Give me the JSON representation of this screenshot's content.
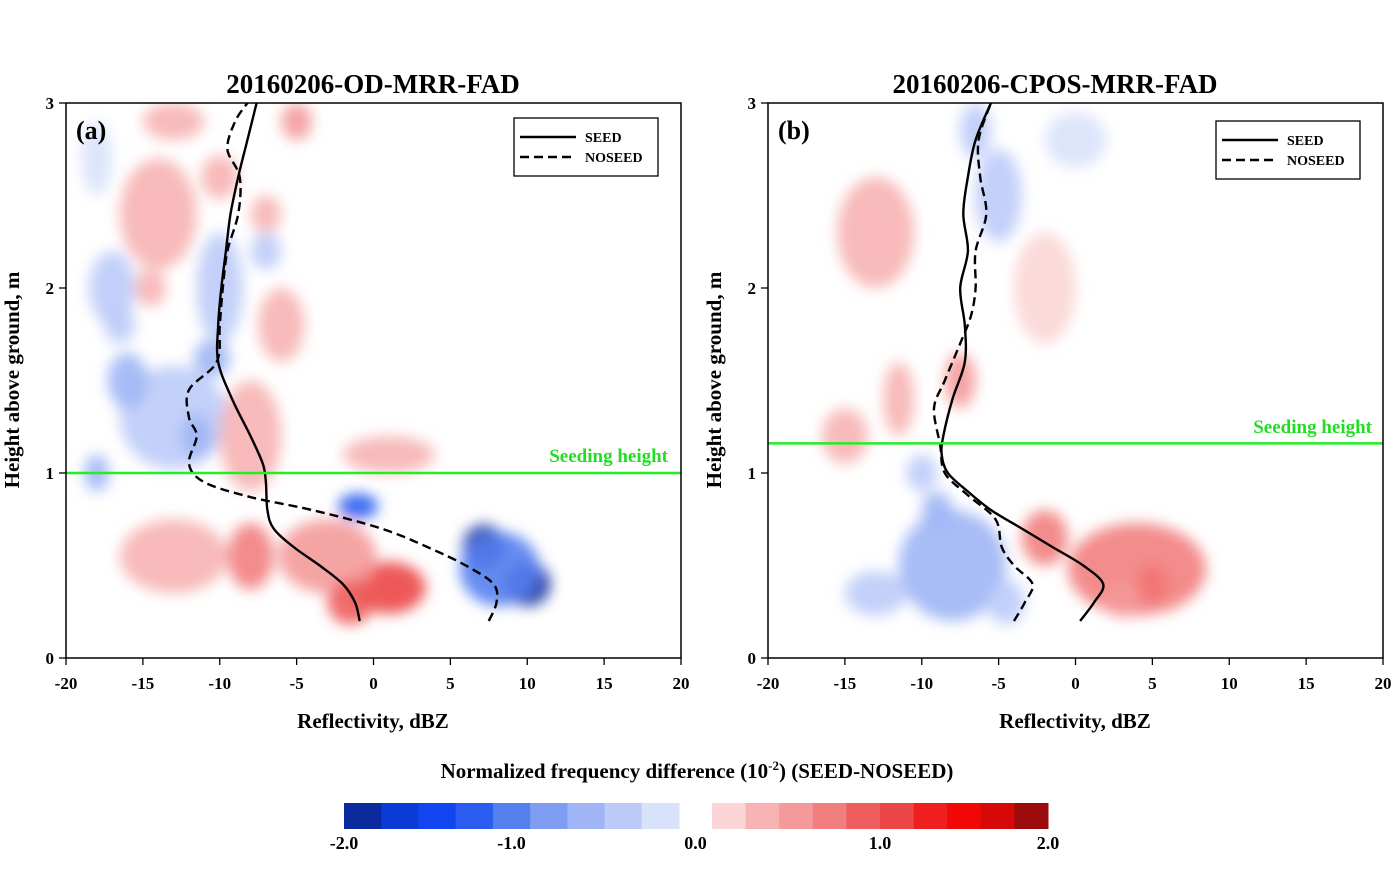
{
  "colors": {
    "seeding_line": "#22ee22",
    "seeding_text": "#22dd22",
    "negative_scale": [
      "#0b2a9e",
      "#0a3bd6",
      "#1045f0",
      "#2a5cf0",
      "#5580f0",
      "#7d9cf2",
      "#9fb5f5",
      "#bccbf8",
      "#d9e2fb"
    ],
    "positive_scale": [
      "#fbd5d5",
      "#f7b3b3",
      "#f49a9a",
      "#f27f7f",
      "#ee5d5d",
      "#ec4646",
      "#f01f1f",
      "#f20707",
      "#d60808",
      "#9c0b0b"
    ]
  },
  "colorbar": {
    "title": "Normalized frequency difference (10",
    "title_exp": "-2",
    "title_suffix": ") (SEED-NOSEED)",
    "tick_labels": [
      "-2.0",
      "-1.0",
      "0.0",
      "1.0",
      "2.0"
    ],
    "tick_values": [
      -2.0,
      -1.0,
      0.0,
      1.0,
      2.0
    ]
  },
  "chart_data": [
    {
      "type": "line",
      "panel_label": "(a)",
      "title": "20160206-OD-MRR-FAD",
      "xlabel": "Reflectivity, dBZ",
      "ylabel": "Height above ground, m",
      "xlim": [
        -20,
        20
      ],
      "ylim": [
        0,
        3
      ],
      "xticks": [
        -20,
        -15,
        -10,
        -5,
        0,
        5,
        10,
        15,
        20
      ],
      "yticks": [
        0,
        1,
        2,
        3
      ],
      "legend": {
        "placement": "top-right",
        "entries": [
          "SEED",
          "NOSEED"
        ]
      },
      "seeding": {
        "label": "Seeding height",
        "height": 1.0
      },
      "series": [
        {
          "name": "SEED",
          "style": "solid",
          "points": [
            [
              -0.9,
              0.2
            ],
            [
              -1.2,
              0.3
            ],
            [
              -2.0,
              0.4
            ],
            [
              -3.5,
              0.5
            ],
            [
              -5.2,
              0.6
            ],
            [
              -6.5,
              0.7
            ],
            [
              -6.9,
              0.8
            ],
            [
              -7.0,
              0.95
            ],
            [
              -7.2,
              1.05
            ],
            [
              -8.0,
              1.2
            ],
            [
              -9.2,
              1.4
            ],
            [
              -10.1,
              1.6
            ],
            [
              -10.1,
              1.8
            ],
            [
              -9.9,
              2.0
            ],
            [
              -9.6,
              2.2
            ],
            [
              -9.3,
              2.4
            ],
            [
              -8.8,
              2.6
            ],
            [
              -8.2,
              2.8
            ],
            [
              -7.6,
              3.0
            ]
          ]
        },
        {
          "name": "NOSEED",
          "style": "dashed",
          "points": [
            [
              7.5,
              0.2
            ],
            [
              8.0,
              0.3
            ],
            [
              7.8,
              0.4
            ],
            [
              6.0,
              0.5
            ],
            [
              3.5,
              0.6
            ],
            [
              0.5,
              0.7
            ],
            [
              -4.0,
              0.8
            ],
            [
              -8.0,
              0.87
            ],
            [
              -11.0,
              0.95
            ],
            [
              -12.0,
              1.05
            ],
            [
              -11.5,
              1.2
            ],
            [
              -12.0,
              1.3
            ],
            [
              -12.0,
              1.45
            ],
            [
              -10.2,
              1.6
            ],
            [
              -10.0,
              1.8
            ],
            [
              -9.8,
              2.0
            ],
            [
              -9.5,
              2.2
            ],
            [
              -8.8,
              2.4
            ],
            [
              -8.7,
              2.6
            ],
            [
              -9.5,
              2.75
            ],
            [
              -9.0,
              2.9
            ],
            [
              -8.2,
              3.0
            ]
          ]
        }
      ],
      "heatmap_blobs": [
        {
          "x": 7.2,
          "y": 0.6,
          "sx": 1.4,
          "sy": 0.12,
          "v": -1.8
        },
        {
          "x": 10.0,
          "y": 0.4,
          "sx": 1.5,
          "sy": 0.12,
          "v": -2.0
        },
        {
          "x": 8.2,
          "y": 0.48,
          "sx": 2.6,
          "sy": 0.2,
          "v": -1.0
        },
        {
          "x": -1.0,
          "y": 0.82,
          "sx": 1.3,
          "sy": 0.07,
          "v": -1.3
        },
        {
          "x": 1.0,
          "y": 0.38,
          "sx": 2.4,
          "sy": 0.14,
          "v": 1.0
        },
        {
          "x": -3.0,
          "y": 0.55,
          "sx": 3.2,
          "sy": 0.2,
          "v": 0.45
        },
        {
          "x": -1.5,
          "y": 0.3,
          "sx": 1.5,
          "sy": 0.12,
          "v": 0.9
        },
        {
          "x": -13.0,
          "y": 0.55,
          "sx": 3.5,
          "sy": 0.2,
          "v": 0.3
        },
        {
          "x": -8.0,
          "y": 0.55,
          "sx": 1.5,
          "sy": 0.18,
          "v": 0.6
        },
        {
          "x": -13.0,
          "y": 1.3,
          "sx": 3.5,
          "sy": 0.28,
          "v": -0.35
        },
        {
          "x": -16.0,
          "y": 1.5,
          "sx": 1.3,
          "sy": 0.15,
          "v": -0.55
        },
        {
          "x": -10.5,
          "y": 1.62,
          "sx": 1.2,
          "sy": 0.1,
          "v": -0.6
        },
        {
          "x": -11.5,
          "y": 1.2,
          "sx": 1.0,
          "sy": 0.12,
          "v": -0.55
        },
        {
          "x": -18.0,
          "y": 1.0,
          "sx": 0.8,
          "sy": 0.1,
          "v": -0.45
        },
        {
          "x": -8.0,
          "y": 1.2,
          "sx": 2.0,
          "sy": 0.3,
          "v": 0.3
        },
        {
          "x": 1.0,
          "y": 1.1,
          "sx": 3.0,
          "sy": 0.1,
          "v": 0.2
        },
        {
          "x": -5.0,
          "y": 2.9,
          "sx": 1.0,
          "sy": 0.1,
          "v": 0.45
        },
        {
          "x": -10.0,
          "y": 2.6,
          "sx": 1.2,
          "sy": 0.12,
          "v": 0.3
        },
        {
          "x": -14.0,
          "y": 2.4,
          "sx": 2.5,
          "sy": 0.3,
          "v": 0.2
        },
        {
          "x": -10.0,
          "y": 2.0,
          "sx": 1.5,
          "sy": 0.3,
          "v": -0.3
        },
        {
          "x": -7.0,
          "y": 2.2,
          "sx": 1.0,
          "sy": 0.1,
          "v": -0.35
        },
        {
          "x": -17.0,
          "y": 2.0,
          "sx": 1.5,
          "sy": 0.2,
          "v": -0.3
        },
        {
          "x": -14.5,
          "y": 2.0,
          "sx": 1.0,
          "sy": 0.1,
          "v": 0.3
        },
        {
          "x": -16.5,
          "y": 1.8,
          "sx": 1.0,
          "sy": 0.1,
          "v": -0.35
        },
        {
          "x": -6.0,
          "y": 1.8,
          "sx": 1.5,
          "sy": 0.2,
          "v": 0.25
        },
        {
          "x": -18.0,
          "y": 2.7,
          "sx": 1.0,
          "sy": 0.2,
          "v": -0.2
        },
        {
          "x": -13.0,
          "y": 2.9,
          "sx": 2.0,
          "sy": 0.1,
          "v": 0.2
        },
        {
          "x": -7.0,
          "y": 2.4,
          "sx": 1.0,
          "sy": 0.1,
          "v": 0.25
        }
      ]
    },
    {
      "type": "line",
      "panel_label": "(b)",
      "title": "20160206-CPOS-MRR-FAD",
      "xlabel": "Reflectivity, dBZ",
      "ylabel": "Height above ground, m",
      "xlim": [
        -20,
        20
      ],
      "ylim": [
        0,
        3
      ],
      "xticks": [
        -20,
        -15,
        -10,
        -5,
        0,
        5,
        10,
        15,
        20
      ],
      "yticks": [
        0,
        1,
        2,
        3
      ],
      "legend": {
        "placement": "top-right",
        "entries": [
          "SEED",
          "NOSEED"
        ]
      },
      "seeding": {
        "label": "Seeding height",
        "height": 1.16
      },
      "series": [
        {
          "name": "SEED",
          "style": "solid",
          "points": [
            [
              0.3,
              0.2
            ],
            [
              1.2,
              0.3
            ],
            [
              1.8,
              0.4
            ],
            [
              0.5,
              0.5
            ],
            [
              -1.5,
              0.6
            ],
            [
              -3.5,
              0.7
            ],
            [
              -5.5,
              0.8
            ],
            [
              -7.0,
              0.9
            ],
            [
              -8.3,
              1.0
            ],
            [
              -8.7,
              1.1
            ],
            [
              -8.6,
              1.2
            ],
            [
              -8.0,
              1.4
            ],
            [
              -7.2,
              1.6
            ],
            [
              -7.2,
              1.8
            ],
            [
              -7.5,
              2.0
            ],
            [
              -7.0,
              2.2
            ],
            [
              -7.3,
              2.4
            ],
            [
              -7.0,
              2.6
            ],
            [
              -6.5,
              2.8
            ],
            [
              -5.5,
              3.0
            ]
          ]
        },
        {
          "name": "NOSEED",
          "style": "dashed",
          "points": [
            [
              -4.0,
              0.2
            ],
            [
              -3.3,
              0.3
            ],
            [
              -2.8,
              0.4
            ],
            [
              -4.0,
              0.5
            ],
            [
              -4.8,
              0.6
            ],
            [
              -5.2,
              0.75
            ],
            [
              -7.0,
              0.88
            ],
            [
              -8.5,
              1.0
            ],
            [
              -8.8,
              1.15
            ],
            [
              -9.2,
              1.35
            ],
            [
              -8.5,
              1.5
            ],
            [
              -7.5,
              1.7
            ],
            [
              -6.8,
              1.85
            ],
            [
              -6.5,
              2.0
            ],
            [
              -6.5,
              2.2
            ],
            [
              -5.8,
              2.4
            ],
            [
              -6.2,
              2.6
            ],
            [
              -6.3,
              2.8
            ],
            [
              -5.5,
              3.0
            ]
          ]
        }
      ],
      "heatmap_blobs": [
        {
          "x": 5.0,
          "y": 0.4,
          "sx": 1.0,
          "sy": 0.1,
          "v": 1.4
        },
        {
          "x": 4.0,
          "y": 0.48,
          "sx": 4.5,
          "sy": 0.25,
          "v": 0.6
        },
        {
          "x": -2.0,
          "y": 0.65,
          "sx": 1.5,
          "sy": 0.15,
          "v": 0.7
        },
        {
          "x": 3.0,
          "y": 0.32,
          "sx": 1.2,
          "sy": 0.1,
          "v": 0.55
        },
        {
          "x": -8.0,
          "y": 0.5,
          "sx": 3.5,
          "sy": 0.3,
          "v": -0.5
        },
        {
          "x": -13.0,
          "y": 0.35,
          "sx": 2.0,
          "sy": 0.12,
          "v": -0.3
        },
        {
          "x": -4.5,
          "y": 0.3,
          "sx": 1.2,
          "sy": 0.12,
          "v": -0.4
        },
        {
          "x": -9.0,
          "y": 0.8,
          "sx": 1.0,
          "sy": 0.1,
          "v": -0.55
        },
        {
          "x": -7.5,
          "y": 1.5,
          "sx": 1.0,
          "sy": 0.15,
          "v": 0.5
        },
        {
          "x": -11.5,
          "y": 1.4,
          "sx": 1.0,
          "sy": 0.2,
          "v": 0.35
        },
        {
          "x": -5.0,
          "y": 2.5,
          "sx": 1.5,
          "sy": 0.25,
          "v": -0.4
        },
        {
          "x": -6.5,
          "y": 2.85,
          "sx": 1.0,
          "sy": 0.15,
          "v": -0.35
        },
        {
          "x": -10.0,
          "y": 1.0,
          "sx": 1.0,
          "sy": 0.1,
          "v": -0.3
        },
        {
          "x": -13.0,
          "y": 2.3,
          "sx": 2.5,
          "sy": 0.3,
          "v": 0.2
        },
        {
          "x": -2.0,
          "y": 2.0,
          "sx": 2.0,
          "sy": 0.3,
          "v": 0.12
        },
        {
          "x": -15.0,
          "y": 1.2,
          "sx": 1.5,
          "sy": 0.15,
          "v": 0.25
        },
        {
          "x": 0.0,
          "y": 2.8,
          "sx": 2.0,
          "sy": 0.15,
          "v": -0.15
        }
      ]
    }
  ]
}
